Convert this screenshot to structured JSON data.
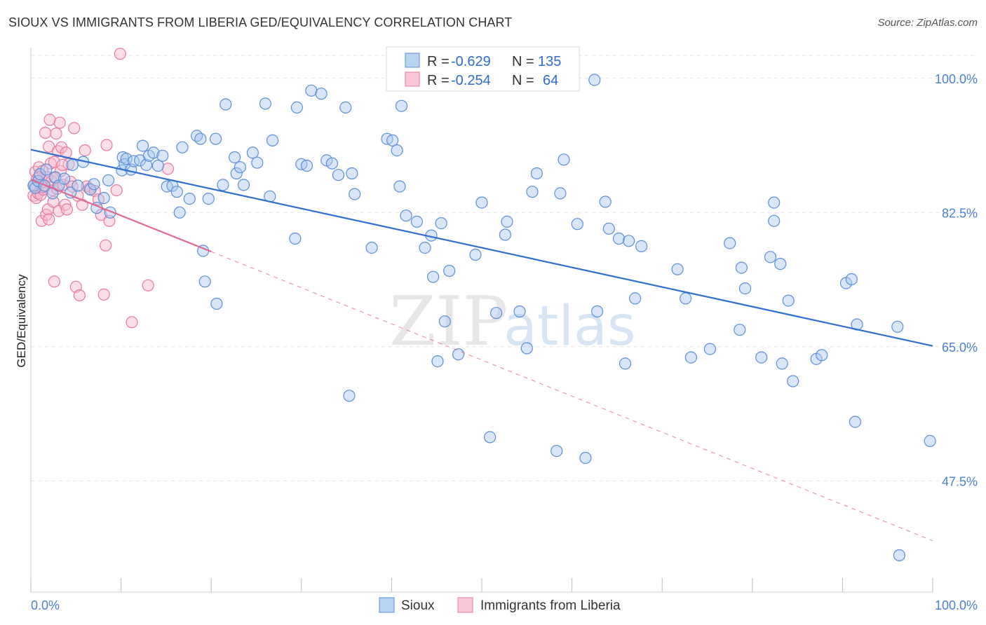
{
  "title": "SIOUX VS IMMIGRANTS FROM LIBERIA GED/EQUIVALENCY CORRELATION CHART",
  "source": "Source: ZipAtlas.com",
  "watermark": {
    "zip": "ZIP",
    "atlas": "atlas"
  },
  "colors": {
    "sioux_fill": "#a9c8ef",
    "sioux_stroke": "#5a8fd8",
    "sioux_line": "#2f6fcf",
    "liberia_fill": "#f6b8cb",
    "liberia_stroke": "#e9799f",
    "liberia_line": "#e2668f",
    "grid": "#e2e2e2",
    "axis_label": "#4a7fd4"
  },
  "legend": {
    "items": [
      {
        "r_label": "R =",
        "r_value": "-0.629",
        "n_label": "N =",
        "n_value": "135"
      },
      {
        "r_label": "R =",
        "r_value": "-0.254",
        "n_label": "N =",
        "n_value": "64"
      }
    ]
  },
  "chart_data": {
    "type": "scatter",
    "title": "SIOUX VS IMMIGRANTS FROM LIBERIA GED/EQUIVALENCY CORRELATION CHART",
    "xlabel": "",
    "ylabel": "GED/Equivalency",
    "xlim": [
      0,
      100
    ],
    "ylim": [
      33,
      104
    ],
    "x_tick_labels": [
      "0.0%",
      "100.0%"
    ],
    "y_ticks": [
      47.5,
      65.0,
      82.5,
      100.0
    ],
    "y_tick_labels": [
      "47.5%",
      "65.0%",
      "82.5%",
      "100.0%"
    ],
    "grid": true,
    "legend_position": "top-center",
    "series": [
      {
        "name": "Sioux",
        "r": -0.629,
        "n": 135,
        "trend": {
          "x": [
            0,
            100
          ],
          "y": [
            90.7,
            65.1
          ]
        },
        "points": [
          [
            0.3,
            86.0
          ],
          [
            0.5,
            85.7
          ],
          [
            0.8,
            86.6
          ],
          [
            1.0,
            87.5
          ],
          [
            1.5,
            86.0
          ],
          [
            1.7,
            88.1
          ],
          [
            2.4,
            85.0
          ],
          [
            2.7,
            87.1
          ],
          [
            3.1,
            86.0
          ],
          [
            3.7,
            86.9
          ],
          [
            4.4,
            85.1
          ],
          [
            4.6,
            88.7
          ],
          [
            5.2,
            86.0
          ],
          [
            5.8,
            89.1
          ],
          [
            6.6,
            85.5
          ],
          [
            7.0,
            86.2
          ],
          [
            7.3,
            83.1
          ],
          [
            8.1,
            84.4
          ],
          [
            8.6,
            86.7
          ],
          [
            8.8,
            82.5
          ],
          [
            10.1,
            88.0
          ],
          [
            10.2,
            89.7
          ],
          [
            10.4,
            88.8
          ],
          [
            10.6,
            89.5
          ],
          [
            11.1,
            88.1
          ],
          [
            11.4,
            89.2
          ],
          [
            12.1,
            89.3
          ],
          [
            12.4,
            91.2
          ],
          [
            12.8,
            88.7
          ],
          [
            13.1,
            89.9
          ],
          [
            13.6,
            90.3
          ],
          [
            14.1,
            88.6
          ],
          [
            14.6,
            89.9
          ],
          [
            15.1,
            85.9
          ],
          [
            15.7,
            86.0
          ],
          [
            16.2,
            85.2
          ],
          [
            16.5,
            82.5
          ],
          [
            16.8,
            91.0
          ],
          [
            17.6,
            84.3
          ],
          [
            18.4,
            92.5
          ],
          [
            18.8,
            92.1
          ],
          [
            19.1,
            77.5
          ],
          [
            19.3,
            73.5
          ],
          [
            19.7,
            84.3
          ],
          [
            20.5,
            92.1
          ],
          [
            20.6,
            70.6
          ],
          [
            21.3,
            86.1
          ],
          [
            21.6,
            96.6
          ],
          [
            22.6,
            89.7
          ],
          [
            22.8,
            87.6
          ],
          [
            23.2,
            88.4
          ],
          [
            23.6,
            86.1
          ],
          [
            24.6,
            90.3
          ],
          [
            25.1,
            89.0
          ],
          [
            26.0,
            96.7
          ],
          [
            26.5,
            84.6
          ],
          [
            26.8,
            91.9
          ],
          [
            29.3,
            79.1
          ],
          [
            29.5,
            96.2
          ],
          [
            30.0,
            88.8
          ],
          [
            30.6,
            88.6
          ],
          [
            31.1,
            98.4
          ],
          [
            32.2,
            98.0
          ],
          [
            32.8,
            89.3
          ],
          [
            33.4,
            88.9
          ],
          [
            34.1,
            87.4
          ],
          [
            34.9,
            96.2
          ],
          [
            35.3,
            58.6
          ],
          [
            35.6,
            87.6
          ],
          [
            35.9,
            84.9
          ],
          [
            37.8,
            77.9
          ],
          [
            39.5,
            92.1
          ],
          [
            40.1,
            91.9
          ],
          [
            40.6,
            90.6
          ],
          [
            40.9,
            85.9
          ],
          [
            41.1,
            96.4
          ],
          [
            41.6,
            82.1
          ],
          [
            42.8,
            81.3
          ],
          [
            43.7,
            77.9
          ],
          [
            44.4,
            79.5
          ],
          [
            44.6,
            74.1
          ],
          [
            45.1,
            63.1
          ],
          [
            45.5,
            81.1
          ],
          [
            45.9,
            68.3
          ],
          [
            46.4,
            74.9
          ],
          [
            47.4,
            64.0
          ],
          [
            49.3,
            77.0
          ],
          [
            50.0,
            83.8
          ],
          [
            50.9,
            53.2
          ],
          [
            51.6,
            69.4
          ],
          [
            52.6,
            79.6
          ],
          [
            52.8,
            81.3
          ],
          [
            54.2,
            69.6
          ],
          [
            55.0,
            64.8
          ],
          [
            55.6,
            85.2
          ],
          [
            56.1,
            87.6
          ],
          [
            58.3,
            51.4
          ],
          [
            58.7,
            85.0
          ],
          [
            59.1,
            89.4
          ],
          [
            60.6,
            81.0
          ],
          [
            61.5,
            50.5
          ],
          [
            62.5,
            99.8
          ],
          [
            62.8,
            69.6
          ],
          [
            63.7,
            83.9
          ],
          [
            64.1,
            80.4
          ],
          [
            65.2,
            79.1
          ],
          [
            65.9,
            62.8
          ],
          [
            66.3,
            78.8
          ],
          [
            67.0,
            71.3
          ],
          [
            67.7,
            78.1
          ],
          [
            71.7,
            75.1
          ],
          [
            72.6,
            71.3
          ],
          [
            73.2,
            63.6
          ],
          [
            75.3,
            64.7
          ],
          [
            77.5,
            78.5
          ],
          [
            78.6,
            67.2
          ],
          [
            78.8,
            75.3
          ],
          [
            79.2,
            72.6
          ],
          [
            81.0,
            63.6
          ],
          [
            82.0,
            76.7
          ],
          [
            82.4,
            83.8
          ],
          [
            82.4,
            81.4
          ],
          [
            83.1,
            75.8
          ],
          [
            83.3,
            62.8
          ],
          [
            84.0,
            71.0
          ],
          [
            84.5,
            60.5
          ],
          [
            87.1,
            63.4
          ],
          [
            87.7,
            63.9
          ],
          [
            90.4,
            73.3
          ],
          [
            91.0,
            73.8
          ],
          [
            91.4,
            55.2
          ],
          [
            91.6,
            67.9
          ],
          [
            96.1,
            67.6
          ],
          [
            99.7,
            52.7
          ],
          [
            96.3,
            37.8
          ]
        ]
      },
      {
        "name": "Immigrants from Liberia",
        "r": -0.254,
        "n": 64,
        "trend": {
          "x": [
            0,
            20
          ],
          "y": [
            86.8,
            77.4
          ]
        },
        "trend_extension": {
          "x": [
            20,
            100
          ],
          "y": [
            77.4,
            39.7
          ]
        },
        "points": [
          [
            0.3,
            84.7
          ],
          [
            0.4,
            86.1
          ],
          [
            0.5,
            87.8
          ],
          [
            0.6,
            84.4
          ],
          [
            0.7,
            86.9
          ],
          [
            0.8,
            85.0
          ],
          [
            0.9,
            88.4
          ],
          [
            1.0,
            86.3
          ],
          [
            1.1,
            84.8
          ],
          [
            1.2,
            81.4
          ],
          [
            1.3,
            87.9
          ],
          [
            1.4,
            85.5
          ],
          [
            1.5,
            86.5
          ],
          [
            1.6,
            92.9
          ],
          [
            1.7,
            82.2
          ],
          [
            1.8,
            87.1
          ],
          [
            1.9,
            82.9
          ],
          [
            2.0,
            91.1
          ],
          [
            2.0,
            81.6
          ],
          [
            2.1,
            94.6
          ],
          [
            2.2,
            88.9
          ],
          [
            2.3,
            86.6
          ],
          [
            2.4,
            85.4
          ],
          [
            2.5,
            83.9
          ],
          [
            2.6,
            89.1
          ],
          [
            2.6,
            73.5
          ],
          [
            2.8,
            92.8
          ],
          [
            2.9,
            85.6
          ],
          [
            3.0,
            90.5
          ],
          [
            3.1,
            82.7
          ],
          [
            3.2,
            94.2
          ],
          [
            3.3,
            87.9
          ],
          [
            3.4,
            91.0
          ],
          [
            3.6,
            86.1
          ],
          [
            3.8,
            83.5
          ],
          [
            3.9,
            90.3
          ],
          [
            4.0,
            82.9
          ],
          [
            4.2,
            88.8
          ],
          [
            4.4,
            86.5
          ],
          [
            4.6,
            85.9
          ],
          [
            4.8,
            93.5
          ],
          [
            5.0,
            72.8
          ],
          [
            5.2,
            84.7
          ],
          [
            5.4,
            71.7
          ],
          [
            5.7,
            83.5
          ],
          [
            6.0,
            90.6
          ],
          [
            6.2,
            85.9
          ],
          [
            6.5,
            85.6
          ],
          [
            7.1,
            85.3
          ],
          [
            7.5,
            84.2
          ],
          [
            7.8,
            82.2
          ],
          [
            8.1,
            71.8
          ],
          [
            8.3,
            78.2
          ],
          [
            8.4,
            91.3
          ],
          [
            8.7,
            81.4
          ],
          [
            9.5,
            85.4
          ],
          [
            9.9,
            103.2
          ],
          [
            11.2,
            68.2
          ],
          [
            13.0,
            73.0
          ],
          [
            15.2,
            88.2
          ],
          [
            0.9,
            87.1
          ],
          [
            1.3,
            85.8
          ],
          [
            2.7,
            87.0
          ],
          [
            3.5,
            88.7
          ]
        ]
      }
    ]
  },
  "bottom_legend": [
    "Sioux",
    "Immigrants from Liberia"
  ]
}
